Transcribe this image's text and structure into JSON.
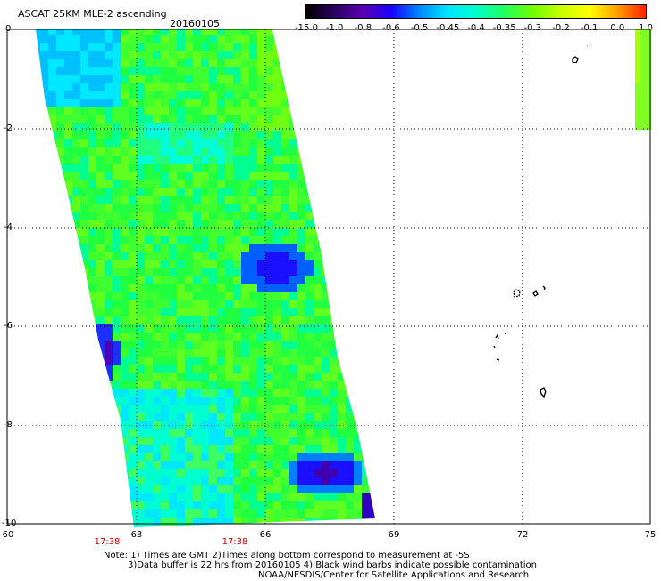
{
  "header": {
    "title": "ASCAT 25KM MLE-2 ascending",
    "date": "20160105"
  },
  "colorbar": {
    "labels": [
      "-15.0",
      "-1.0",
      "-0.8",
      "-0.6",
      "-0.5",
      "-0.45",
      "-0.4",
      "-0.35",
      "-0.3",
      "-0.2",
      "-0.1",
      "0.0",
      "1.0"
    ],
    "colors": [
      "#000000",
      "#2a0060",
      "#5a00b0",
      "#1a00ff",
      "#0088ff",
      "#00e5ff",
      "#00ffcc",
      "#20ff60",
      "#70ff00",
      "#c8ff00",
      "#ffff00",
      "#ffa000",
      "#ff2000"
    ]
  },
  "map": {
    "y_labels": [
      "0",
      "-2",
      "-4",
      "-6",
      "-8",
      "-10"
    ],
    "x_labels": [
      "60",
      "63",
      "66",
      "69",
      "72",
      "75"
    ],
    "time_labels": [
      "17:38",
      "17:38"
    ]
  },
  "notes": {
    "line1": "Note: 1) Times are GMT 2)Times along bottom correspond to measurement at -5S",
    "line2": "3)Data buffer is 22 hrs from 20160105 4) Black wind barbs indicate possible contamination",
    "line3": "NOAA/NESDIS/Center for Satellite Applications and Research"
  }
}
